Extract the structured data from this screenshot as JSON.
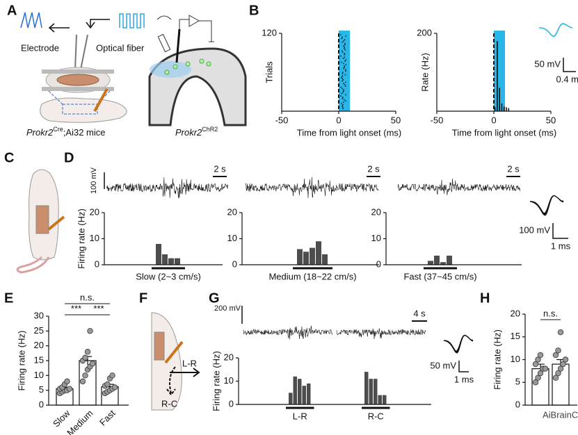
{
  "panels": [
    "A",
    "B",
    "C",
    "D",
    "E",
    "F",
    "G",
    "H"
  ],
  "panel_a": {
    "electrode": "Electrode",
    "optical_fiber": "Optical fiber",
    "mouse_label": {
      "gene": "Prokr2",
      "sup": "Cre",
      "rest": ";Ai32 mice"
    },
    "brain_label": {
      "gene": "Prokr2",
      "sup": "ChR2"
    }
  },
  "panel_b": {
    "waveform_scale": {
      "y": "50 mV",
      "x": "0.4 ms"
    }
  },
  "panel_d": {
    "trace_scale": "100 mV",
    "time_scale": "2 s",
    "waveform_scale": {
      "y": "100 mV",
      "x": "1 ms"
    }
  },
  "panel_f": {
    "arrows": [
      "L-R",
      "R-C"
    ]
  },
  "panel_g": {
    "trace_scale": "200 mV",
    "time_scale": "4 s",
    "waveform_scale": {
      "y": "50 mV",
      "x": "1 ms"
    }
  },
  "watermark": "AiBrainC",
  "chart_data": [
    {
      "type": "raster",
      "ylabel": "Trials",
      "xlabel": "Time from light onset (ms)",
      "xlim": [
        -50,
        50
      ],
      "xticks": [
        -50,
        0,
        50
      ],
      "ylim": [
        0,
        120
      ],
      "yticks": [
        120
      ],
      "light_color": "#29b6e8"
    },
    {
      "type": "psth",
      "ylabel": "Rate (Hz)",
      "xlabel": "Time from light onset (ms)",
      "xlim": [
        -50,
        50
      ],
      "xticks": [
        -50,
        0,
        50
      ],
      "ylim": [
        0,
        200
      ],
      "yticks": [
        200
      ],
      "light_color": "#29b6e8",
      "x": [
        1,
        3,
        5,
        7,
        9,
        11,
        13
      ],
      "values": [
        10,
        180,
        60,
        20,
        12,
        10,
        8
      ]
    },
    {
      "type": "histogram",
      "ylabel": "Firing rate (Hz)",
      "xlabel": "Slow (2~3 cm/s)",
      "ylim": [
        0,
        20
      ],
      "yticks": [
        0,
        10,
        20
      ],
      "values": [
        8,
        4,
        2.5,
        2.5
      ],
      "color": "#4d4d4d"
    },
    {
      "type": "histogram",
      "xlabel": "Medium (18~22 cm/s)",
      "ylim": [
        0,
        20
      ],
      "yticks": [
        0,
        10,
        20
      ],
      "values": [
        6,
        5,
        6.5,
        9,
        4
      ],
      "color": "#4d4d4d"
    },
    {
      "type": "histogram",
      "xlabel": "Fast (37~45 cm/s)",
      "ylim": [
        0,
        20
      ],
      "yticks": [
        0,
        10,
        20
      ],
      "values": [
        1.5,
        3.5,
        1,
        3.5
      ],
      "color": "#4d4d4d"
    },
    {
      "type": "bar_scatter",
      "ylabel": "Firing rate (Hz)",
      "categories": [
        "Slow",
        "Medium",
        "Fast"
      ],
      "ylim": [
        0,
        30
      ],
      "yticks": [
        0,
        5,
        10,
        15,
        20,
        25,
        30
      ],
      "values": [
        5.5,
        15,
        6.2
      ],
      "errors": [
        0.5,
        1.4,
        0.8
      ],
      "points": [
        [
          4,
          4.5,
          5,
          5,
          5.5,
          5.5,
          6,
          7,
          8
        ],
        [
          8,
          10,
          12,
          13,
          14,
          15,
          16,
          18,
          25
        ],
        [
          4,
          4.5,
          5,
          5.5,
          6,
          6.5,
          7,
          9,
          10
        ]
      ],
      "annotations": [
        "n.s.",
        "***",
        "***"
      ],
      "point_color": "#999999"
    },
    {
      "type": "grouped_histogram",
      "ylabel": "Firing rate (Hz)",
      "ylim": [
        0,
        20
      ],
      "yticks": [
        0,
        10,
        20
      ],
      "color": "#4d4d4d",
      "groups": [
        {
          "name": "L-R",
          "values": [
            5,
            12,
            11,
            8,
            9
          ]
        },
        {
          "name": "R-C",
          "values": [
            14,
            11,
            11,
            4,
            4
          ]
        }
      ]
    },
    {
      "type": "bar_scatter",
      "ylabel": "Firing rate (Hz)",
      "ylim": [
        0,
        20
      ],
      "yticks": [
        0,
        5,
        10,
        15,
        20
      ],
      "values": [
        8,
        9
      ],
      "errors": [
        1,
        1
      ],
      "points": [
        [
          5,
          6,
          7,
          8,
          8,
          9,
          10,
          11
        ],
        [
          6,
          7,
          8,
          9,
          10,
          11,
          12,
          16
        ]
      ],
      "annotations": [
        "n.s."
      ],
      "point_color": "#999999"
    }
  ]
}
